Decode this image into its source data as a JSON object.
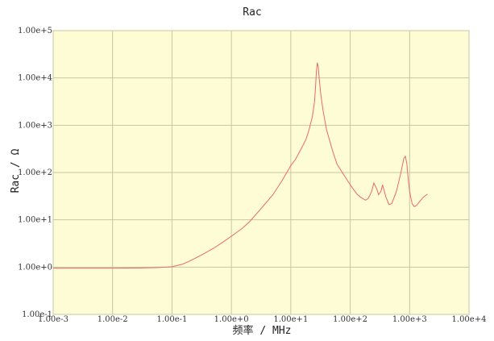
{
  "chart_data": {
    "type": "line",
    "title": "Rac",
    "xlabel": "频率 / MHz",
    "ylabel": "Rac / Ω",
    "xscale": "log",
    "yscale": "log",
    "xlim": [
      0.001,
      10000
    ],
    "ylim": [
      0.1,
      100000
    ],
    "grid": true,
    "plot_background": "#fefcd4",
    "series_color": "#e86a6a",
    "xticks": [
      {
        "value": 0.001,
        "label": "1.00e-3"
      },
      {
        "value": 0.01,
        "label": "1.00e-2"
      },
      {
        "value": 0.1,
        "label": "1.00e-1"
      },
      {
        "value": 1,
        "label": "1.00e+0"
      },
      {
        "value": 10,
        "label": "1.00e+1"
      },
      {
        "value": 100,
        "label": "1.00e+2"
      },
      {
        "value": 1000,
        "label": "1.00e+3"
      },
      {
        "value": 10000,
        "label": "1.00e+4"
      }
    ],
    "yticks": [
      {
        "value": 0.1,
        "label": "1.00e-1"
      },
      {
        "value": 1,
        "label": "1.00e+0"
      },
      {
        "value": 10,
        "label": "1.00e+1"
      },
      {
        "value": 100,
        "label": "1.00e+2"
      },
      {
        "value": 1000,
        "label": "1.00e+3"
      },
      {
        "value": 10000,
        "label": "1.00e+4"
      },
      {
        "value": 100000,
        "label": "1.00e+5"
      }
    ],
    "series": [
      {
        "x": [
          0.001,
          0.003,
          0.01,
          0.03,
          0.06,
          0.1,
          0.15,
          0.2,
          0.3,
          0.5,
          0.7,
          1,
          1.5,
          2,
          3,
          5,
          7,
          10,
          12,
          15,
          18,
          20,
          23,
          25,
          26,
          27,
          28,
          29,
          30,
          32,
          35,
          40,
          50,
          60,
          80,
          100,
          130,
          150,
          180,
          200,
          230,
          250,
          280,
          300,
          330,
          350,
          400,
          450,
          500,
          600,
          700,
          800,
          850,
          900,
          950,
          1000,
          1100,
          1200,
          1300,
          1500,
          1700,
          2000
        ],
        "y": [
          0.95,
          0.95,
          0.95,
          0.96,
          0.98,
          1.02,
          1.15,
          1.35,
          1.75,
          2.5,
          3.3,
          4.5,
          6.5,
          9.0,
          16,
          34,
          65,
          140,
          190,
          320,
          500,
          750,
          1500,
          3000,
          6000,
          14000,
          21000,
          17000,
          10000,
          4500,
          2000,
          800,
          300,
          150,
          85,
          55,
          35,
          30,
          26,
          28,
          40,
          60,
          45,
          34,
          40,
          55,
          30,
          21,
          22,
          40,
          90,
          200,
          220,
          150,
          70,
          40,
          22,
          19,
          20,
          25,
          30,
          35
        ]
      }
    ]
  }
}
